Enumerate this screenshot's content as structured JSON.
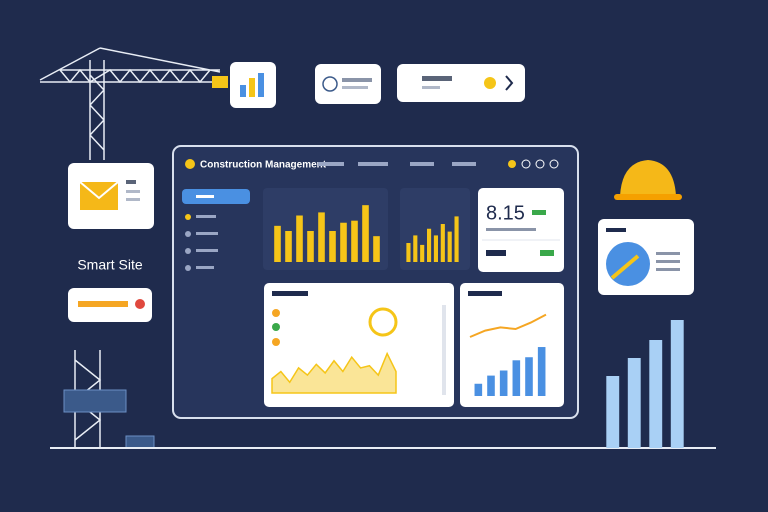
{
  "header": {
    "title": "Construction Management"
  },
  "sidebar_label": "Smart Site",
  "kpi": {
    "value": "8.15"
  },
  "chart_data": [
    {
      "type": "bar",
      "values": [
        35,
        30,
        45,
        30,
        48,
        30,
        38,
        40,
        55,
        25
      ],
      "ylim": [
        0,
        60
      ],
      "color": "#f5c518"
    },
    {
      "type": "bar",
      "values": [
        20,
        28,
        18,
        35,
        28,
        40,
        32,
        48
      ],
      "ylim": [
        0,
        60
      ],
      "color": "#f5c518"
    },
    {
      "type": "area",
      "values": [
        20,
        30,
        15,
        35,
        25,
        40,
        28,
        45,
        30,
        50,
        35,
        38,
        25,
        55,
        30
      ],
      "ylim": [
        0,
        60
      ],
      "color": "#f5c518"
    },
    {
      "type": "bar",
      "values": [
        12,
        20,
        25,
        35,
        38,
        48
      ],
      "ylim": [
        0,
        50
      ],
      "color": "#4a90e2"
    },
    {
      "type": "line",
      "values": [
        10,
        18,
        22,
        20,
        28,
        38
      ],
      "ylim": [
        0,
        50
      ],
      "color": "#f5a623"
    },
    {
      "type": "bar",
      "values": [
        72,
        90,
        108,
        128
      ],
      "ylim": [
        0,
        140
      ],
      "color": "#a9d0f5"
    }
  ]
}
